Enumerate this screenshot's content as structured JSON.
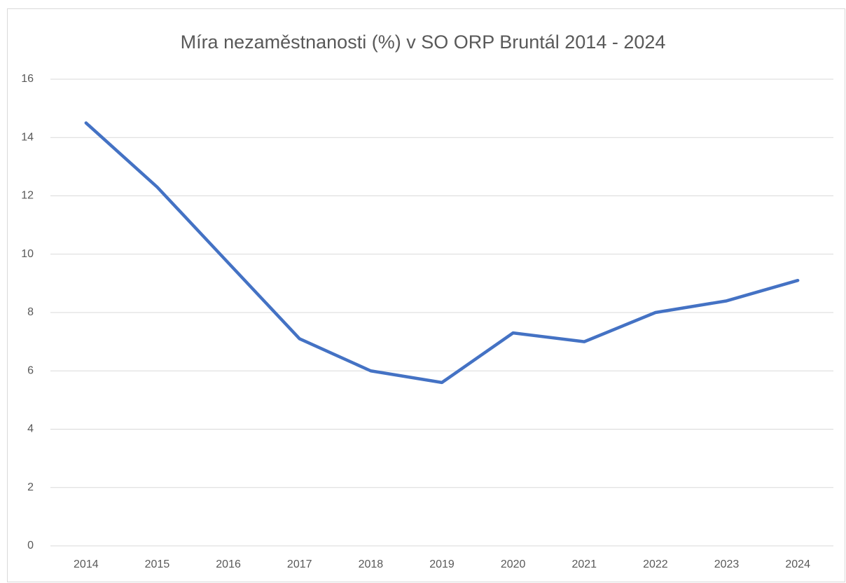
{
  "chart_data": {
    "type": "line",
    "title": "Míra nezaměstnanosti (%) v SO ORP Bruntál 2014 - 2024",
    "categories": [
      "2014",
      "2015",
      "2016",
      "2017",
      "2018",
      "2019",
      "2020",
      "2021",
      "2022",
      "2023",
      "2024"
    ],
    "series": [
      {
        "name": "Míra nezaměstnanosti",
        "color": "#4472c4",
        "values": [
          14.5,
          12.3,
          9.7,
          7.1,
          6.0,
          5.6,
          7.3,
          7.0,
          8.0,
          8.4,
          9.1
        ]
      }
    ],
    "ylim": [
      0,
      16
    ],
    "yticks": [
      0,
      2,
      4,
      6,
      8,
      10,
      12,
      14,
      16
    ],
    "grid": true,
    "legend": false
  }
}
